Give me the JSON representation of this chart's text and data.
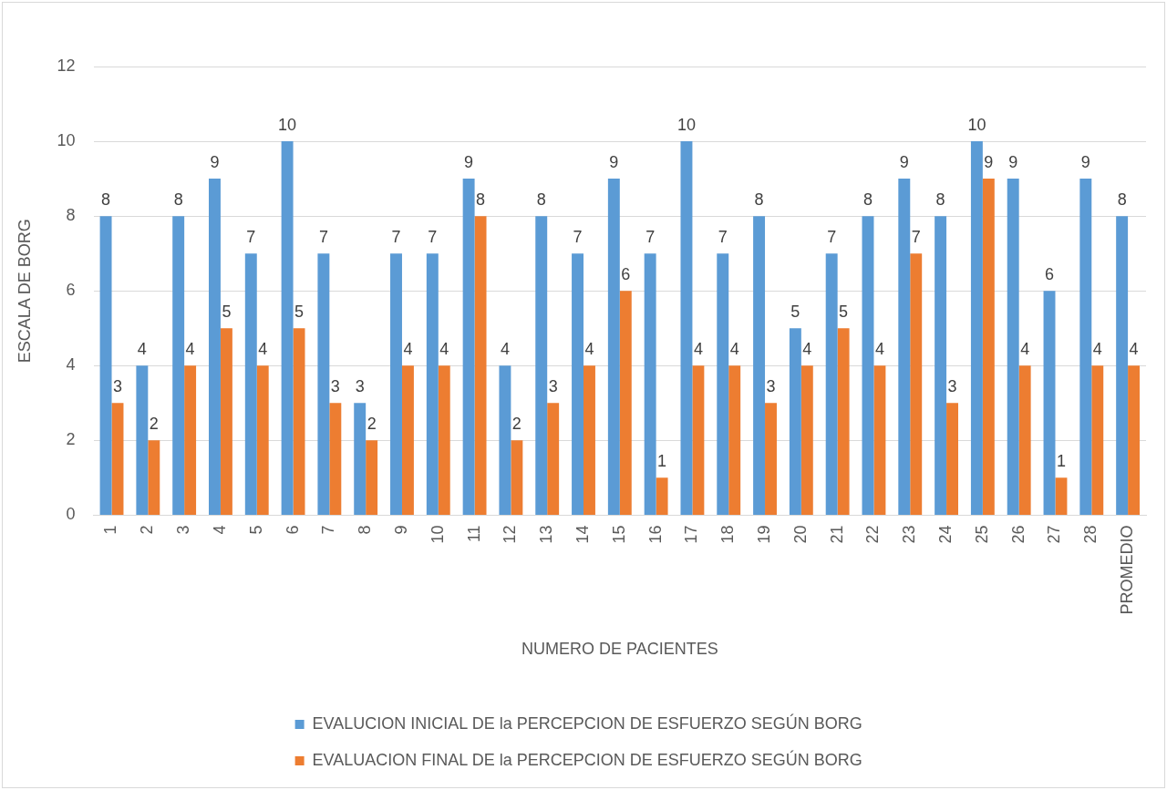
{
  "chart_data": {
    "type": "bar",
    "categories": [
      "1",
      "2",
      "3",
      "4",
      "5",
      "6",
      "7",
      "8",
      "9",
      "10",
      "11",
      "12",
      "13",
      "14",
      "15",
      "16",
      "17",
      "18",
      "19",
      "20",
      "21",
      "22",
      "23",
      "24",
      "25",
      "26",
      "27",
      "28",
      "PROMEDIO"
    ],
    "series": [
      {
        "name": "EVALUCION INICIAL DE la PERCEPCION DE ESFUERZO SEGÚN BORG",
        "color": "#5b9bd5",
        "values": [
          8,
          4,
          8,
          9,
          7,
          10,
          7,
          3,
          7,
          7,
          9,
          4,
          8,
          7,
          9,
          7,
          10,
          7,
          8,
          5,
          7,
          8,
          9,
          8,
          10,
          9,
          6,
          9,
          8
        ]
      },
      {
        "name": "EVALUACION FINAL DE la PERCEPCION DE ESFUERZO SEGÚN BORG",
        "color": "#ed7d31",
        "values": [
          3,
          2,
          4,
          5,
          4,
          5,
          3,
          2,
          4,
          4,
          8,
          2,
          3,
          4,
          6,
          1,
          4,
          4,
          3,
          4,
          5,
          4,
          7,
          3,
          9,
          4,
          1,
          4,
          4
        ]
      }
    ],
    "xlabel": "NUMERO DE PACIENTES",
    "ylabel": "ESCALA DE BORG",
    "ylim": [
      0,
      12
    ],
    "yticks": [
      0,
      2,
      4,
      6,
      8,
      10,
      12
    ],
    "grid": "y",
    "legend": "bottom",
    "data_labels": true
  }
}
